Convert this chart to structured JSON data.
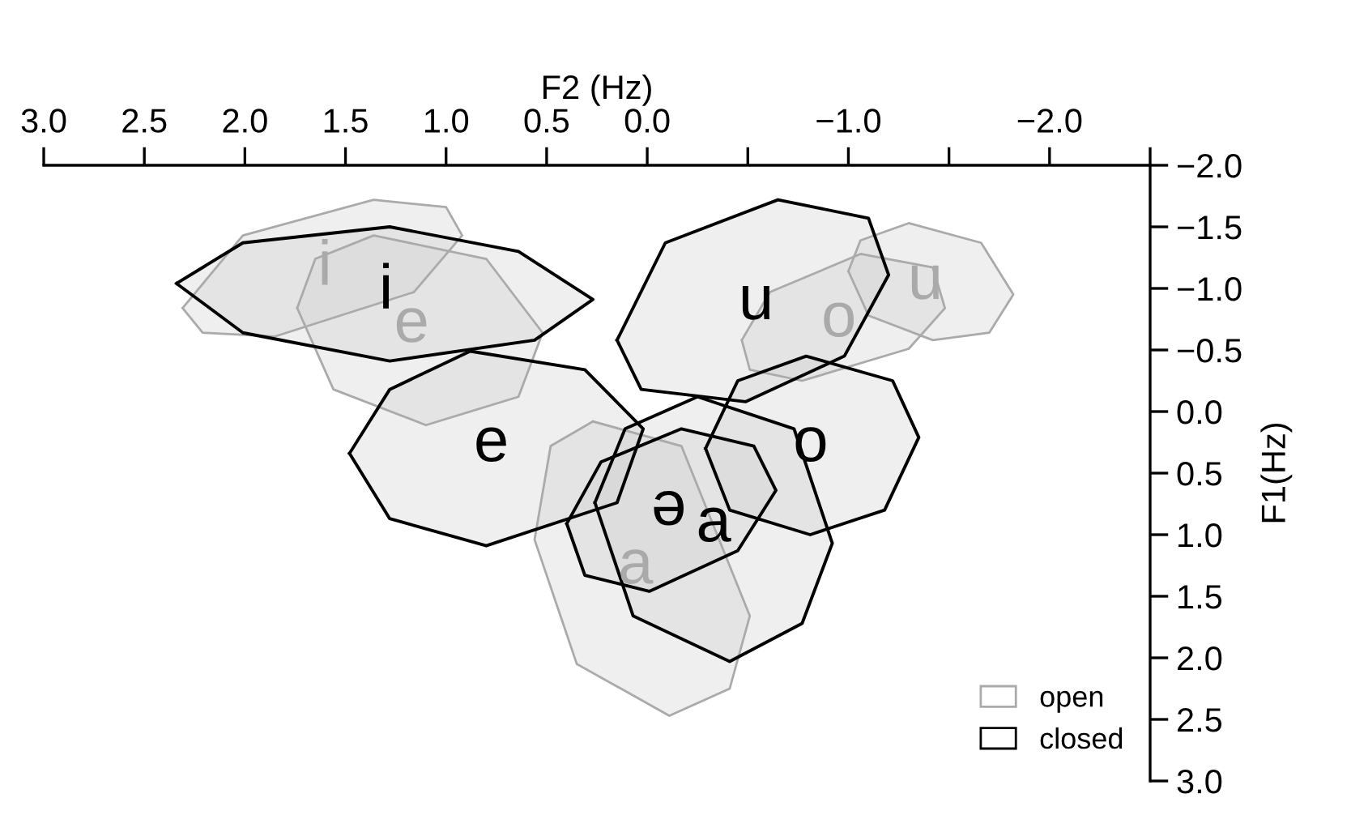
{
  "chart_data": {
    "type": "area",
    "xlabel": "F2 (Hz)",
    "ylabel": "F1(Hz)",
    "xlim": [
      3.0,
      -2.5
    ],
    "xticks": [
      {
        "value": 3.0,
        "label": "3.0"
      },
      {
        "value": 2.5,
        "label": "2.5"
      },
      {
        "value": 2.0,
        "label": "2.0"
      },
      {
        "value": 1.5,
        "label": "1.5"
      },
      {
        "value": 1.0,
        "label": "1.0"
      },
      {
        "value": 0.5,
        "label": "0.5"
      },
      {
        "value": 0.0,
        "label": "0.0"
      },
      {
        "value": -0.5,
        "label": null
      },
      {
        "value": -1.0,
        "label": "−1.0"
      },
      {
        "value": -1.5,
        "label": null
      },
      {
        "value": -2.0,
        "label": "−2.0"
      },
      {
        "value": -2.5,
        "label": null
      }
    ],
    "ylim": [
      3.0,
      -2.0
    ],
    "yticks": [
      {
        "value": -2.0,
        "label": "−2.0"
      },
      {
        "value": -1.5,
        "label": "−1.5"
      },
      {
        "value": -1.0,
        "label": "−1.0"
      },
      {
        "value": -0.5,
        "label": "−0.5"
      },
      {
        "value": 0.0,
        "label": "0.0"
      },
      {
        "value": 0.5,
        "label": "0.5"
      },
      {
        "value": 1.0,
        "label": "1.0"
      },
      {
        "value": 1.5,
        "label": "1.5"
      },
      {
        "value": 2.0,
        "label": "2.0"
      },
      {
        "value": 2.5,
        "label": "2.5"
      },
      {
        "value": 3.0,
        "label": "3.0"
      }
    ],
    "grid": false,
    "legend": "bottom right",
    "marker": "none",
    "line_style": "solid",
    "series": [
      {
        "name": "open",
        "color": "#aaaaaa",
        "x": [
          2.31,
          2.01,
          1.36,
          1.0,
          0.92,
          1.16,
          1.85,
          2.21
        ],
        "values": [
          -0.84,
          -1.43,
          -1.72,
          -1.66,
          -1.43,
          -0.97,
          -0.61,
          -0.64
        ]
      },
      {
        "color": "#aaaaaa",
        "x": [
          1.74,
          1.65,
          1.36,
          0.8,
          0.52,
          0.64,
          1.1,
          1.56
        ],
        "values": [
          -0.84,
          -1.24,
          -1.43,
          -1.24,
          -0.64,
          -0.12,
          0.11,
          -0.18
        ]
      },
      {
        "color": "#aaaaaa",
        "x": [
          -1.0,
          -1.06,
          -1.3,
          -1.66,
          -1.82,
          -1.7,
          -1.42,
          -1.1
        ],
        "values": [
          -1.14,
          -1.39,
          -1.53,
          -1.37,
          -0.95,
          -0.64,
          -0.58,
          -0.78
        ]
      },
      {
        "color": "#aaaaaa",
        "x": [
          -0.47,
          -0.61,
          -1.06,
          -1.42,
          -1.48,
          -1.3,
          -0.77,
          -0.51
        ],
        "values": [
          -0.58,
          -0.97,
          -1.28,
          -1.17,
          -0.84,
          -0.51,
          -0.25,
          -0.34
        ]
      },
      {
        "color": "#aaaaaa",
        "x": [
          0.27,
          -0.17,
          -0.51,
          -0.41,
          -0.11,
          0.35,
          0.56,
          0.48
        ],
        "values": [
          0.08,
          0.28,
          1.66,
          2.25,
          2.47,
          2.05,
          1.04,
          0.28
        ]
      },
      {
        "name": "closed",
        "color": "#000000",
        "x": [
          2.34,
          2.01,
          1.28,
          0.64,
          0.27,
          0.56,
          1.28,
          2.01
        ],
        "values": [
          -1.04,
          -1.37,
          -1.5,
          -1.3,
          -0.91,
          -0.58,
          -0.41,
          -0.64
        ]
      },
      {
        "color": "#000000",
        "x": [
          1.48,
          1.28,
          0.88,
          0.31,
          0.02,
          0.15,
          0.8,
          1.28
        ],
        "values": [
          0.34,
          -0.18,
          -0.49,
          -0.34,
          0.14,
          0.74,
          1.09,
          0.87
        ]
      },
      {
        "color": "#000000",
        "x": [
          0.15,
          -0.09,
          -0.65,
          -1.1,
          -1.2,
          -0.98,
          -0.49,
          0.03
        ],
        "values": [
          -0.58,
          -1.37,
          -1.72,
          -1.57,
          -1.11,
          -0.45,
          -0.08,
          -0.18
        ]
      },
      {
        "color": "#000000",
        "x": [
          -0.29,
          -0.45,
          -0.79,
          -1.22,
          -1.35,
          -1.18,
          -0.81,
          -0.41
        ],
        "values": [
          0.3,
          -0.25,
          -0.45,
          -0.25,
          0.21,
          0.8,
          1.0,
          0.8
        ]
      },
      {
        "color": "#000000",
        "x": [
          0.4,
          0.23,
          -0.17,
          -0.53,
          -0.64,
          -0.45,
          -0.01,
          0.31
        ],
        "values": [
          0.91,
          0.41,
          0.14,
          0.28,
          0.64,
          1.13,
          1.46,
          1.33
        ]
      },
      {
        "color": "#000000",
        "x": [
          0.26,
          0.11,
          -0.25,
          -0.73,
          -0.92,
          -0.77,
          -0.41,
          0.07
        ],
        "values": [
          0.74,
          0.14,
          -0.12,
          0.14,
          1.07,
          1.72,
          2.03,
          1.66
        ]
      }
    ],
    "annotations": [
      "i",
      "e",
      "u",
      "o",
      "a",
      "i",
      "e",
      "u",
      "o",
      "ə",
      "a"
    ]
  }
}
